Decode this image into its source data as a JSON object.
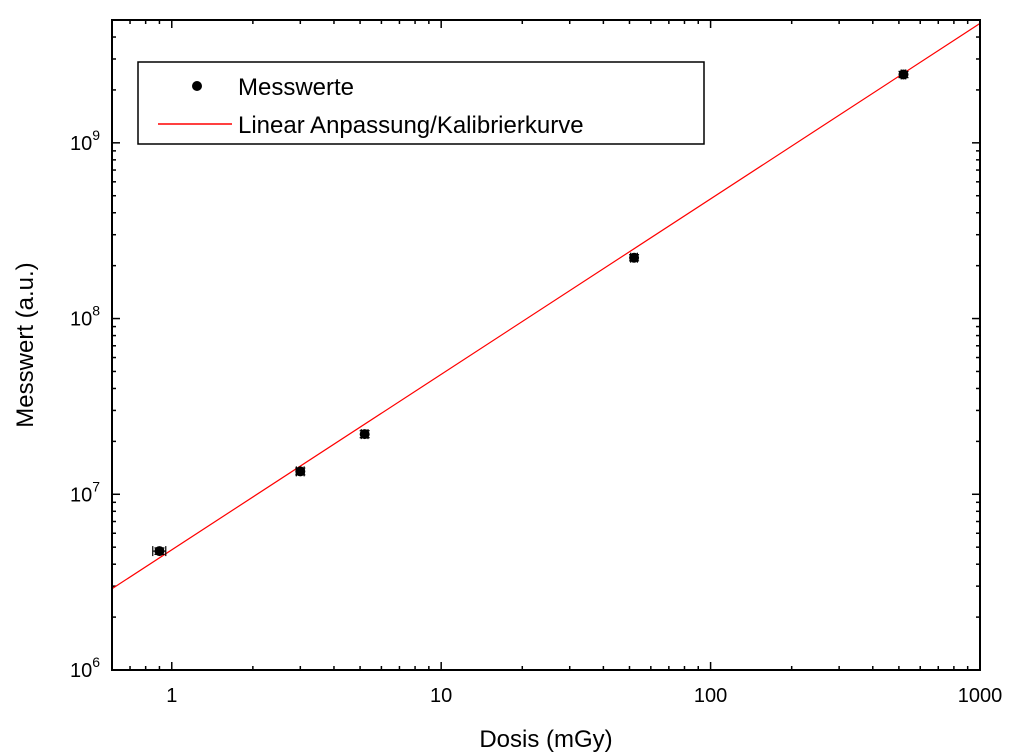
{
  "chart_data": {
    "type": "scatter",
    "xlabel": "Dosis (mGy)",
    "ylabel": "Messwert (a.u.)",
    "xscale": "log",
    "yscale": "log",
    "xlim": [
      0.6,
      1000
    ],
    "ylim": [
      1000000,
      5000000000
    ],
    "grid": false,
    "legend_position": "top-left",
    "x_tick_labels": [
      {
        "value": 1,
        "label": "1"
      },
      {
        "value": 10,
        "label": "10"
      },
      {
        "value": 100,
        "label": "100"
      },
      {
        "value": 1000,
        "label": "1000"
      }
    ],
    "y_tick_labels": [
      {
        "value": 1000000,
        "base": "10",
        "exp": "6"
      },
      {
        "value": 10000000,
        "base": "10",
        "exp": "7"
      },
      {
        "value": 100000000,
        "base": "10",
        "exp": "8"
      },
      {
        "value": 1000000000,
        "base": "10",
        "exp": "9"
      }
    ],
    "series": [
      {
        "name": "Messwerte",
        "kind": "points",
        "color": "#000000",
        "points": [
          {
            "x": 0.9,
            "y": 4750000,
            "xerr": 0.05,
            "yerr": 200000
          },
          {
            "x": 3.0,
            "y": 13500000,
            "xerr": 0.1,
            "yerr": 600000
          },
          {
            "x": 5.2,
            "y": 22000000,
            "xerr": 0.15,
            "yerr": 1000000
          },
          {
            "x": 52,
            "y": 222000000,
            "xerr": 1.5,
            "yerr": 9000000
          },
          {
            "x": 520,
            "y": 2450000000,
            "xerr": 10,
            "yerr": 100000000
          }
        ]
      },
      {
        "name": "Linear Anpassung/Kalibrierkurve",
        "kind": "line",
        "color": "#ff0000",
        "x": [
          0.6,
          1000
        ],
        "y": [
          2900000,
          4780000000
        ]
      }
    ]
  }
}
